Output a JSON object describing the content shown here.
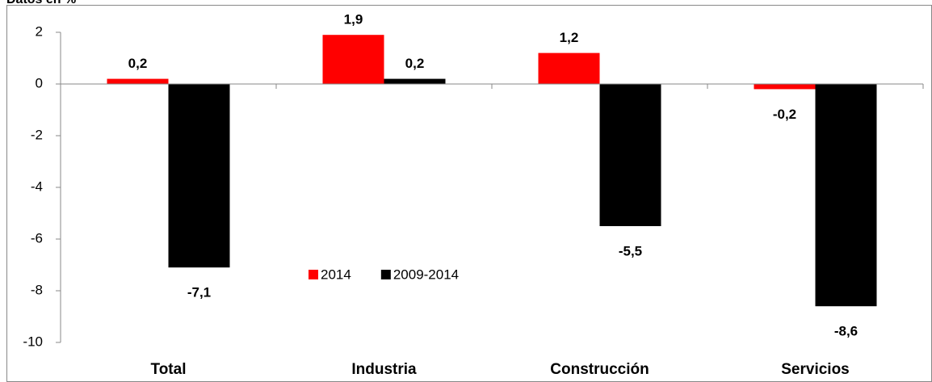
{
  "chart_data": {
    "type": "bar",
    "title": "Datos en %",
    "categories": [
      "Total",
      "Industria",
      "Construcción",
      "Servicios"
    ],
    "series": [
      {
        "name": "2014",
        "color": "#ff0000",
        "values": [
          0.2,
          1.9,
          1.2,
          -0.2
        ],
        "value_labels": [
          "0,2",
          "1,9",
          "1,2",
          "-0,2"
        ]
      },
      {
        "name": "2009-2014",
        "color": "#000000",
        "values": [
          -7.1,
          0.2,
          -5.5,
          -8.6
        ],
        "value_labels": [
          "-7,1",
          "0,2",
          "-5,5",
          "-8,6"
        ]
      }
    ],
    "ylim": [
      -10,
      2
    ],
    "yticks": [
      -10,
      -8,
      -6,
      -4,
      -2,
      0,
      2
    ],
    "grid": false,
    "legend": "center"
  }
}
